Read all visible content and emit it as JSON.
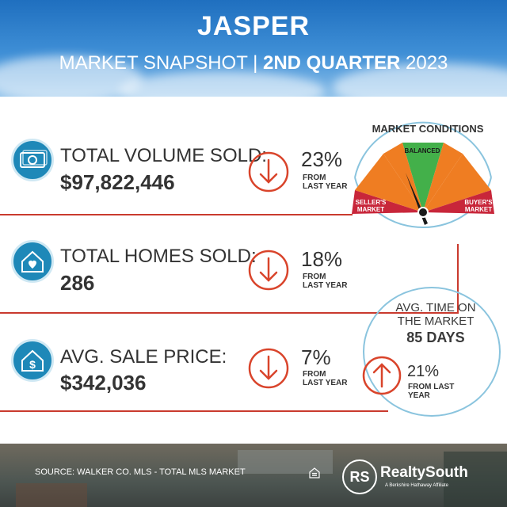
{
  "header": {
    "title": "JASPER",
    "subtitle_plain": "MARKET SNAPSHOT | ",
    "subtitle_bold": "2ND QUARTER",
    "subtitle_year": " 2023"
  },
  "rows": [
    {
      "label": "TOTAL VOLUME SOLD:",
      "value": "$97,822,446",
      "change": "23%",
      "direction": "down",
      "from": [
        "FROM",
        "LAST YEAR"
      ],
      "icon": "money-icon"
    },
    {
      "label": "TOTAL HOMES SOLD:",
      "value": "286",
      "change": "18%",
      "direction": "down",
      "from": [
        "FROM",
        "LAST YEAR"
      ],
      "icon": "house-heart-icon"
    },
    {
      "label": "AVG. SALE PRICE:",
      "value": "$342,036",
      "change": "7%",
      "direction": "down",
      "from": [
        "FROM",
        "LAST YEAR"
      ],
      "icon": "house-dollar-icon"
    }
  ],
  "gauge": {
    "title": "MARKET CONDITIONS",
    "labels": {
      "left": [
        "SELLER'S",
        "MARKET"
      ],
      "center": "BALANCED",
      "right": [
        "BUYER'S",
        "MARKET"
      ]
    },
    "colors": [
      "#c8263a",
      "#ef7d22",
      "#43b04a",
      "#ef7d22",
      "#c8263a"
    ]
  },
  "avg_time": {
    "label_line1": "AVG. TIME ON",
    "label_line2": "THE MARKET",
    "value": "85 DAYS",
    "change": "21%",
    "direction": "up",
    "from": [
      "FROM LAST",
      "YEAR"
    ]
  },
  "footer": {
    "source": "SOURCE: WALKER CO. MLS - TOTAL MLS MARKET",
    "brand_mark": "RS",
    "brand_name": "RealtySouth",
    "brand_tagline": "A Berkshire Hathaway Affiliate"
  },
  "colors": {
    "accent_red": "#c93a2e",
    "icon_blue": "#1e88b8",
    "gauge_ring": "#8ac4de"
  }
}
